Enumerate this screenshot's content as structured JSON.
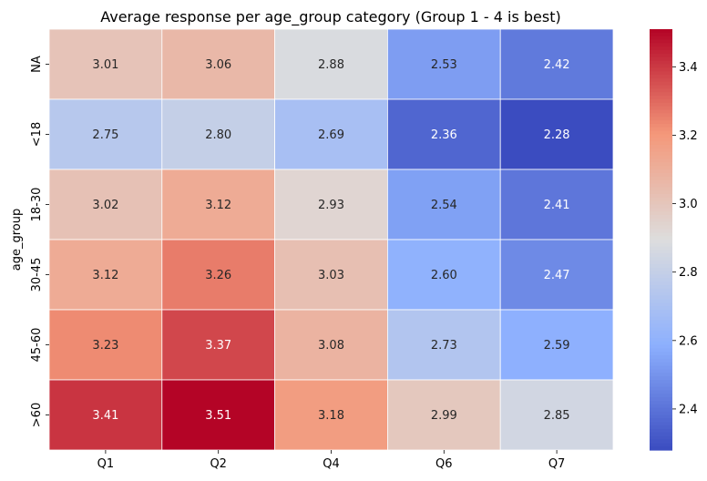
{
  "chart_data": {
    "type": "heatmap",
    "title": "Average response per age_group category (Group 1 - 4 is best)",
    "xlabel": "",
    "ylabel": "age_group",
    "x_categories": [
      "Q1",
      "Q2",
      "Q4",
      "Q6",
      "Q7"
    ],
    "y_categories": [
      "NA",
      "<18",
      "18-30",
      "30-45",
      "45-60",
      ">60"
    ],
    "values": [
      [
        3.01,
        3.06,
        2.88,
        2.53,
        2.42
      ],
      [
        2.75,
        2.8,
        2.69,
        2.36,
        2.28
      ],
      [
        3.02,
        3.12,
        2.93,
        2.54,
        2.41
      ],
      [
        3.12,
        3.26,
        3.03,
        2.6,
        2.47
      ],
      [
        3.23,
        3.37,
        3.08,
        2.73,
        2.59
      ],
      [
        3.41,
        3.51,
        3.18,
        2.99,
        2.85
      ]
    ],
    "value_format": "0.00",
    "colormap": "coolwarm",
    "color_range": [
      2.28,
      3.51
    ],
    "colorbar_ticks": [
      "2.4",
      "2.6",
      "2.8",
      "3.0",
      "3.2",
      "3.4"
    ],
    "cell_separator_color": "#ffffff"
  }
}
